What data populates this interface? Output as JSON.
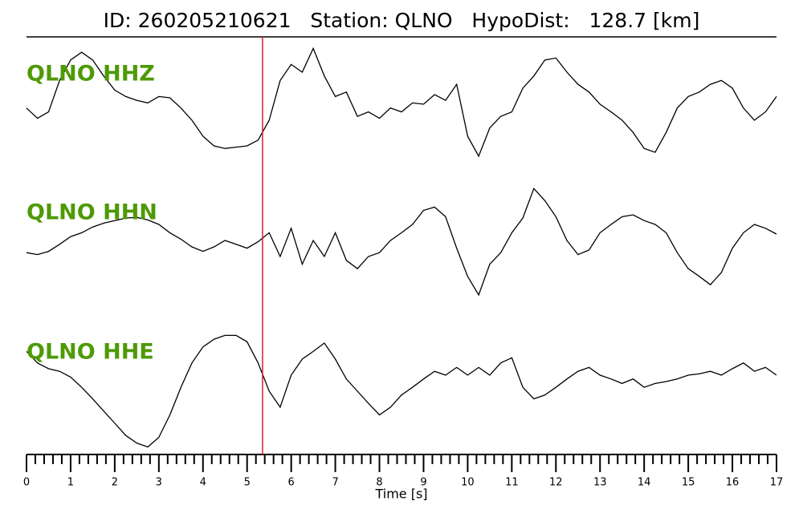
{
  "chart_data": {
    "type": "seismogram",
    "title": "ID: 260205210621   Station: QLNO   HypoDist:   128.7 [km]",
    "xlabel": "Time [s]",
    "xlim": [
      0,
      17
    ],
    "xticks": [
      0,
      1,
      2,
      3,
      4,
      5,
      6,
      7,
      8,
      9,
      10,
      11,
      12,
      13,
      14,
      15,
      16,
      17
    ],
    "xminorticks": [
      0.2,
      0.4,
      0.6,
      0.8,
      1.2,
      1.4,
      1.6,
      1.8,
      2.2,
      2.4,
      2.6,
      2.8,
      3.2,
      3.4,
      3.6,
      3.8,
      4.2,
      4.4,
      4.6,
      4.8,
      5.2,
      5.4,
      5.6,
      5.8,
      6.2,
      6.4,
      6.6,
      6.8,
      7.2,
      7.4,
      7.6,
      7.8,
      8.2,
      8.4,
      8.6,
      8.8,
      9.2,
      9.4,
      9.6,
      9.8,
      10.2,
      10.4,
      10.6,
      10.8,
      11.2,
      11.4,
      11.6,
      11.8,
      12.2,
      12.4,
      12.6,
      12.8,
      13.2,
      13.4,
      13.6,
      13.8,
      14.2,
      14.4,
      14.6,
      14.8,
      15.2,
      15.4,
      15.6,
      15.8,
      16.2,
      16.4,
      16.6,
      16.8
    ],
    "ylim": [
      -1,
      1
    ],
    "pick_time": 5.35,
    "pick_color": "#e41a1c",
    "label_color": "#4e9a06",
    "x": [
      0,
      0.25,
      0.5,
      0.75,
      1,
      1.25,
      1.5,
      1.75,
      2,
      2.25,
      2.5,
      2.75,
      3,
      3.25,
      3.5,
      3.75,
      4,
      4.25,
      4.5,
      4.75,
      5,
      5.25,
      5.5,
      5.75,
      6,
      6.25,
      6.5,
      6.75,
      7,
      7.25,
      7.5,
      7.75,
      8,
      8.25,
      8.5,
      8.75,
      9,
      9.25,
      9.5,
      9.75,
      10,
      10.25,
      10.5,
      10.75,
      11,
      11.25,
      11.5,
      11.75,
      12,
      12.25,
      12.5,
      12.75,
      13,
      13.25,
      13.5,
      13.75,
      14,
      14.25,
      14.5,
      14.75,
      15,
      15.25,
      15.5,
      15.75,
      16,
      16.25,
      16.5,
      16.75,
      17
    ],
    "series": [
      {
        "name": "QLNO HHZ",
        "color": "#000000",
        "values": [
          -0.06,
          -0.22,
          -0.12,
          0.37,
          0.69,
          0.81,
          0.69,
          0.44,
          0.22,
          0.12,
          0.06,
          0.02,
          0.12,
          0.1,
          -0.06,
          -0.25,
          -0.5,
          -0.65,
          -0.69,
          -0.67,
          -0.65,
          -0.56,
          -0.25,
          0.37,
          0.62,
          0.5,
          0.87,
          0.44,
          0.12,
          0.19,
          -0.19,
          -0.12,
          -0.22,
          -0.06,
          -0.12,
          0.02,
          0,
          0.15,
          0.06,
          0.31,
          -0.5,
          -0.81,
          -0.37,
          -0.19,
          -0.12,
          0.25,
          0.44,
          0.69,
          0.72,
          0.5,
          0.31,
          0.19,
          0,
          -0.12,
          -0.25,
          -0.44,
          -0.69,
          -0.75,
          -0.44,
          -0.06,
          0.12,
          0.19,
          0.31,
          0.37,
          0.25,
          -0.06,
          -0.25,
          -0.12,
          0.12
        ]
      },
      {
        "name": "QLNO HHN",
        "color": "#000000",
        "values": [
          -0.19,
          -0.22,
          -0.17,
          -0.06,
          0.06,
          0.12,
          0.21,
          0.27,
          0.31,
          0.35,
          0.36,
          0.32,
          0.25,
          0.12,
          0.02,
          -0.1,
          -0.17,
          -0.1,
          0,
          -0.06,
          -0.12,
          -0.02,
          0.12,
          -0.25,
          0.19,
          -0.37,
          0,
          -0.25,
          0.12,
          -0.31,
          -0.44,
          -0.25,
          -0.19,
          0,
          0.12,
          0.25,
          0.47,
          0.52,
          0.37,
          -0.12,
          -0.56,
          -0.85,
          -0.37,
          -0.19,
          0.12,
          0.35,
          0.81,
          0.62,
          0.37,
          0,
          -0.22,
          -0.15,
          0.12,
          0.25,
          0.37,
          0.4,
          0.31,
          0.25,
          0.12,
          -0.19,
          -0.44,
          -0.56,
          -0.69,
          -0.5,
          -0.12,
          0.12,
          0.25,
          0.19,
          0.1
        ]
      },
      {
        "name": "QLNO HHE",
        "color": "#000000",
        "values": [
          0.62,
          0.44,
          0.35,
          0.31,
          0.22,
          0.06,
          -0.12,
          -0.31,
          -0.5,
          -0.69,
          -0.81,
          -0.87,
          -0.72,
          -0.37,
          0.06,
          0.44,
          0.69,
          0.81,
          0.87,
          0.87,
          0.77,
          0.44,
          0,
          -0.25,
          0.25,
          0.5,
          0.62,
          0.75,
          0.5,
          0.19,
          0,
          -0.19,
          -0.37,
          -0.25,
          -0.06,
          0.06,
          0.19,
          0.31,
          0.25,
          0.37,
          0.25,
          0.37,
          0.25,
          0.44,
          0.52,
          0.06,
          -0.12,
          -0.06,
          0.06,
          0.19,
          0.31,
          0.37,
          0.25,
          0.19,
          0.12,
          0.19,
          0.06,
          0.12,
          0.15,
          0.19,
          0.25,
          0.27,
          0.31,
          0.25,
          0.35,
          0.44,
          0.31,
          0.37,
          0.25
        ]
      }
    ]
  }
}
